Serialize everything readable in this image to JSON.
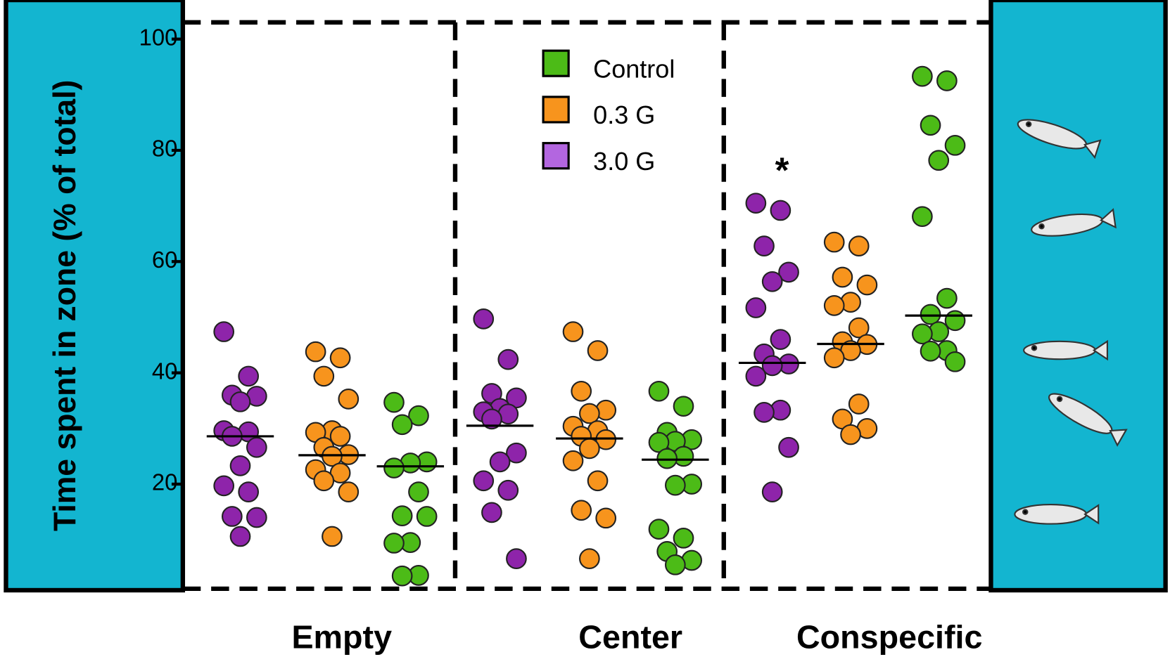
{
  "chart_data": {
    "type": "strip",
    "y_label": "Time spent in zone (% of total)",
    "categories": [
      "Empty",
      "Center",
      "Conspecific"
    ],
    "ylim": [
      1,
      103
    ],
    "yticks": [
      20,
      40,
      60,
      80,
      100
    ],
    "annotation": "*",
    "series": [
      {
        "name": "Control",
        "color": "#4cbb17",
        "values": [
          [
            34.7,
            32.3,
            30.7,
            24,
            23.8,
            22.9,
            18.6,
            14.3,
            14.2,
            9.5,
            9.4,
            3.6,
            3.5
          ],
          [
            36.7,
            34,
            29.3,
            28,
            27.7,
            27.5,
            25,
            24.6,
            20,
            19.8,
            11.9,
            10.3,
            7.9,
            6.3,
            5.5
          ],
          [
            93.3,
            92.5,
            84.5,
            80.9,
            78.2,
            68.1,
            53.4,
            50.5,
            49.4,
            47.4,
            47,
            44,
            43.9,
            42
          ]
        ],
        "means": [
          23.2,
          24.4,
          50.3
        ]
      },
      {
        "name": "0.3  G",
        "color": "#f7941d",
        "values": [
          [
            43.8,
            42.7,
            39.4,
            35.3,
            29.6,
            29.3,
            28.6,
            26.6,
            25.3,
            25,
            22.6,
            22,
            20.6,
            18.6,
            10.6
          ],
          [
            47.4,
            44,
            36.7,
            33.3,
            32.7,
            30.4,
            29.6,
            28.6,
            28,
            26.4,
            24.2,
            20.6,
            15.3,
            13.9,
            6.6
          ],
          [
            63.5,
            62.8,
            57.2,
            55.8,
            52.7,
            52.1,
            48.1,
            45.6,
            45.1,
            44,
            42.7,
            34.4,
            31.7,
            30,
            28.9
          ]
        ],
        "means": [
          25.2,
          28.2,
          45.2
        ]
      },
      {
        "name": "3.0  G",
        "color": "#8e24aa",
        "legend_color": "#b366e0",
        "values": [
          [
            47.4,
            39.4,
            36,
            35.8,
            34.8,
            29.6,
            29.4,
            28.6,
            26.6,
            23.3,
            19.7,
            18.6,
            14.2,
            14,
            10.6
          ],
          [
            49.7,
            42.4,
            36.3,
            35.5,
            33.6,
            33,
            32.6,
            31.7,
            25.6,
            24,
            20.6,
            18.9,
            14.9,
            6.6
          ],
          [
            70.5,
            69.2,
            62.8,
            58.1,
            56.4,
            51.7,
            46,
            43.4,
            41.6,
            41.3,
            39.4,
            33.3,
            32.9,
            26.6,
            18.6
          ]
        ],
        "means": [
          28.6,
          30.5,
          41.8
        ]
      }
    ]
  }
}
